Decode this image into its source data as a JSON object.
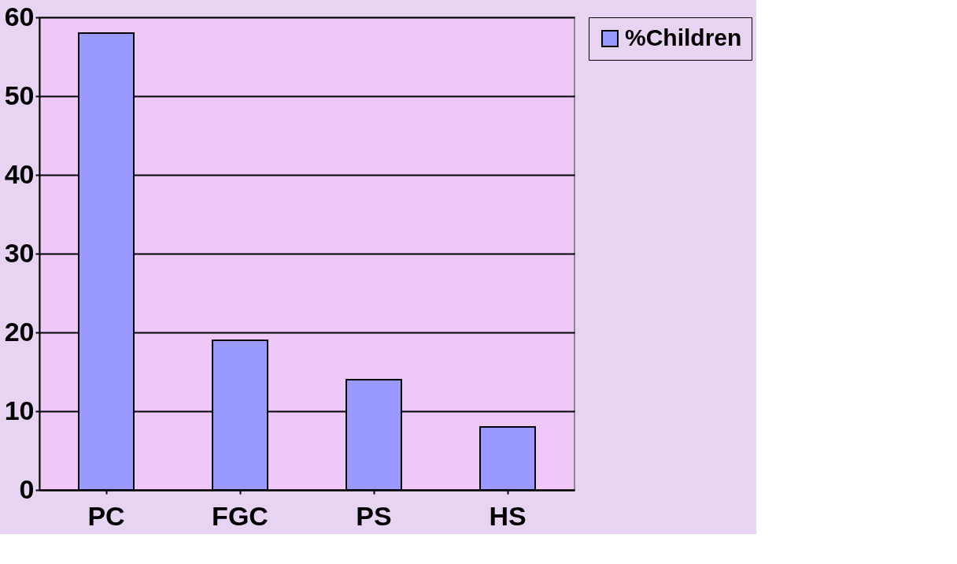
{
  "chart_data": {
    "type": "bar",
    "categories": [
      "PC",
      "FGC",
      "PS",
      "HS"
    ],
    "series": [
      {
        "name": "%Children",
        "color": "#9999ff",
        "values": [
          58,
          19,
          14,
          8
        ]
      }
    ],
    "ylim": [
      0,
      60
    ],
    "yticks": [
      0,
      10,
      20,
      30,
      40,
      50,
      60
    ],
    "grid": "y",
    "legend": "right"
  }
}
